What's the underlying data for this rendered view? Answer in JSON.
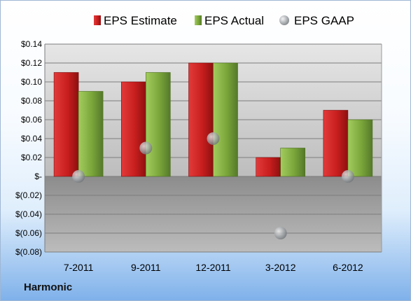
{
  "company": "Harmonic",
  "colors": {
    "estimate": "#c81e1e",
    "actual": "#7aa63a",
    "gaap": "#9aa0a6"
  },
  "chart_data": {
    "type": "bar",
    "title": "",
    "xlabel": "",
    "ylabel": "",
    "categories": [
      "7-2011",
      "9-2011",
      "12-2011",
      "3-2012",
      "6-2012"
    ],
    "series": [
      {
        "name": "EPS Estimate",
        "kind": "bar",
        "values": [
          0.11,
          0.1,
          0.12,
          0.02,
          0.07
        ]
      },
      {
        "name": "EPS Actual",
        "kind": "bar",
        "values": [
          0.09,
          0.11,
          0.12,
          0.03,
          0.06
        ]
      },
      {
        "name": "EPS GAAP",
        "kind": "marker",
        "values": [
          0.0,
          0.03,
          0.04,
          -0.06,
          0.0
        ]
      }
    ],
    "ylim": [
      -0.08,
      0.14
    ],
    "yticks": [
      0.14,
      0.12,
      0.1,
      0.08,
      0.06,
      0.04,
      0.02,
      0,
      -0.02,
      -0.04,
      -0.06,
      -0.08
    ],
    "ytick_labels": [
      "$0.14",
      "$0.12",
      "$0.10",
      "$0.08",
      "$0.06",
      "$0.04",
      "$0.02",
      "$-",
      "$(0.02)",
      "$(0.04)",
      "$(0.06)",
      "$(0.08)"
    ],
    "grid": true,
    "legend_position": "top"
  }
}
